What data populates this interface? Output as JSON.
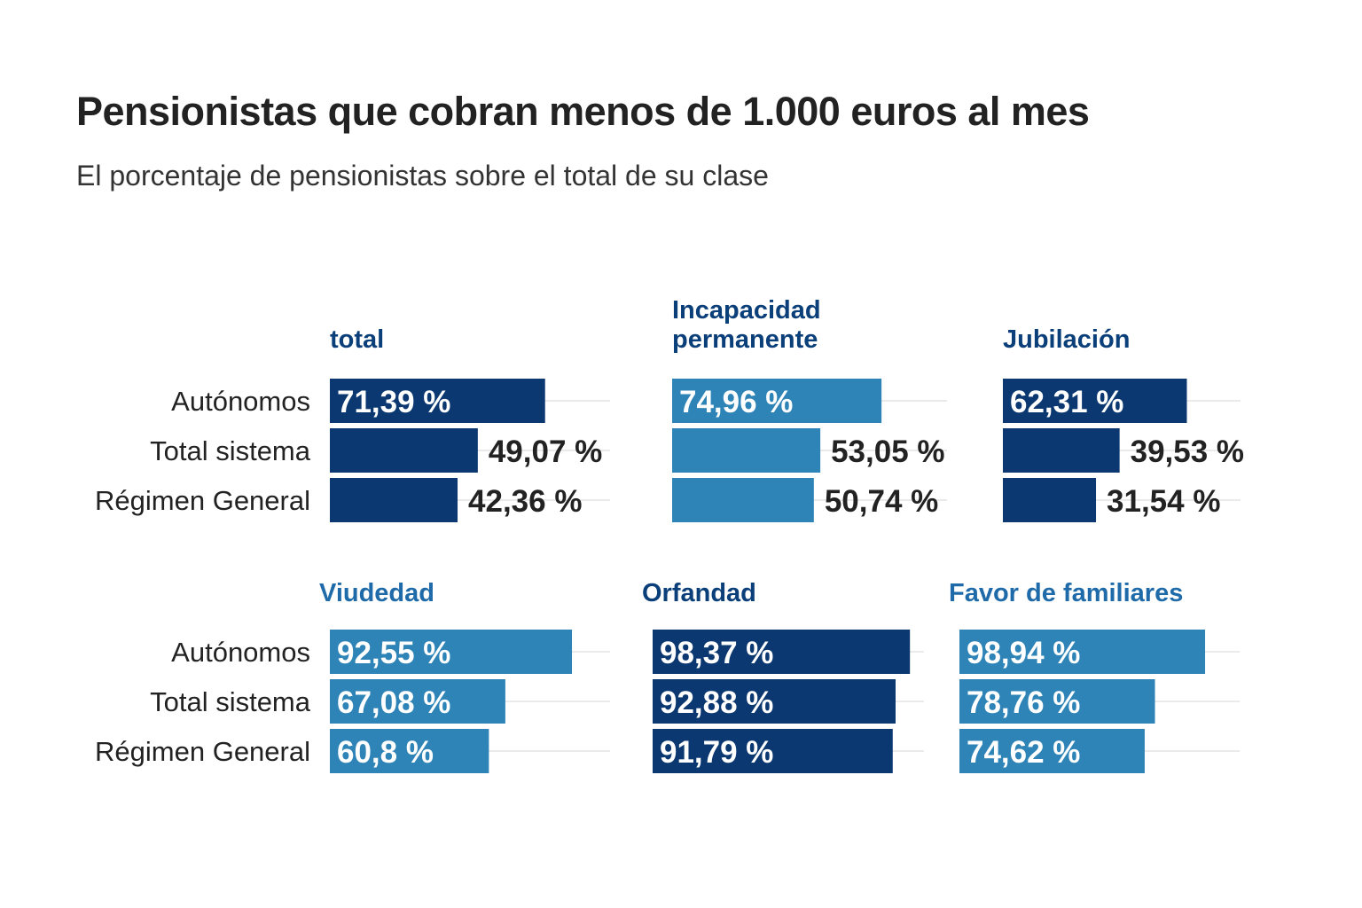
{
  "title": "Pensionistas que cobran menos de 1.000 euros al mes",
  "subtitle": "El porcentaje de pensionistas sobre el total de su clase",
  "colors": {
    "dark": "#0b3870",
    "light": "#2f84b7",
    "grid": "#e3e3e3",
    "title_dark": "#0b3f7a",
    "title_light": "#1f6aa8"
  },
  "chart_data": {
    "type": "bar",
    "orientation": "horizontal",
    "categories": [
      "Autónomos",
      "Total sistema",
      "Régimen General"
    ],
    "panels": [
      {
        "name": "total",
        "title": [
          "total"
        ],
        "color": "dark",
        "title_color": "title_dark",
        "values": [
          71.39,
          49.07,
          42.36
        ],
        "labels": [
          "71,39 %",
          "49,07 %",
          "42,36 %"
        ]
      },
      {
        "name": "incapacidad-permanente",
        "title": [
          "Incapacidad",
          "permanente"
        ],
        "color": "light",
        "title_color": "title_dark",
        "values": [
          74.96,
          53.05,
          50.74
        ],
        "labels": [
          "74,96 %",
          "53,05 %",
          "50,74 %"
        ]
      },
      {
        "name": "jubilacion",
        "title": [
          "Jubilación"
        ],
        "color": "dark",
        "title_color": "title_dark",
        "values": [
          62.31,
          39.53,
          31.54
        ],
        "labels": [
          "62,31 %",
          "39,53 %",
          "31,54 %"
        ]
      },
      {
        "name": "viudedad",
        "title": [
          "Viudedad"
        ],
        "color": "light",
        "title_color": "title_light",
        "values": [
          92.55,
          67.08,
          60.8
        ],
        "labels": [
          "92,55 %",
          "67,08 %",
          "60,8 %"
        ]
      },
      {
        "name": "orfandad",
        "title": [
          "Orfandad"
        ],
        "color": "dark",
        "title_color": "title_dark",
        "values": [
          98.37,
          92.88,
          91.79
        ],
        "labels": [
          "98,37 %",
          "92,88 %",
          "91,79 %"
        ]
      },
      {
        "name": "favor-de-familiares",
        "title": [
          "Favor de familiares"
        ],
        "color": "light",
        "title_color": "title_light",
        "values": [
          98.94,
          78.76,
          74.62
        ],
        "labels": [
          "98,94 %",
          "78,76 %",
          "74,62 %"
        ]
      }
    ],
    "xlim": [
      0,
      100
    ],
    "grid": true,
    "legend": "none"
  }
}
